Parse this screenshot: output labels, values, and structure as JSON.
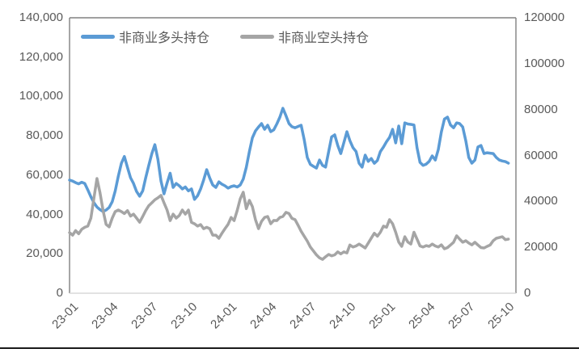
{
  "legend": [
    {
      "label": "非商业多头持仓",
      "color": "#5B9BD5"
    },
    {
      "label": "非商业空头持仓",
      "color": "#A5A5A5"
    }
  ],
  "left_axis_tick_labels": [
    "140,000",
    "120,000",
    "100,000",
    "80,000",
    "60,000",
    "40,000",
    "20,000",
    "0"
  ],
  "right_axis_tick_labels": [
    "120000",
    "100000",
    "80000",
    "60000",
    "40000",
    "20000",
    "0"
  ],
  "x_axis_tick_labels": [
    "23-01",
    "23-04",
    "23-07",
    "23-10",
    "24-01",
    "24-04",
    "24-07",
    "24-10",
    "25-01",
    "25-04",
    "25-07",
    "25-10"
  ],
  "chart_data": {
    "type": "line",
    "title": "",
    "xlabel": "",
    "ylabel": "",
    "frequency": "weekly",
    "grid": false,
    "legend_position": "top-inside",
    "left_axis": {
      "min": 0,
      "max": 140000,
      "tick_step": 20000,
      "number_format": "#,##0"
    },
    "right_axis": {
      "min": 0,
      "max": 120000,
      "tick_step": 20000,
      "number_format": "0"
    },
    "x_tick_labels": [
      "23-01",
      "23-04",
      "23-07",
      "23-10",
      "24-01",
      "24-04",
      "24-07",
      "24-10",
      "25-01",
      "25-04",
      "25-07",
      "25-10"
    ],
    "x_tick_indices": [
      0,
      13,
      26,
      39,
      52,
      65,
      78,
      91,
      104,
      117,
      130,
      143
    ],
    "series": [
      {
        "name": "非商业多头持仓",
        "color": "#5B9BD5",
        "axis": "left",
        "values": [
          57500,
          57000,
          56200,
          55600,
          56400,
          55800,
          52500,
          49000,
          46000,
          43800,
          42500,
          41500,
          42300,
          43600,
          46500,
          52000,
          59500,
          66000,
          69500,
          64000,
          58700,
          55800,
          51700,
          49300,
          52000,
          58700,
          65000,
          71000,
          75500,
          68000,
          57000,
          50500,
          56000,
          61000,
          53800,
          55800,
          54600,
          53000,
          54000,
          52000,
          53000,
          47700,
          49500,
          53000,
          57500,
          62800,
          58500,
          55000,
          53800,
          56600,
          55400,
          54600,
          53400,
          54200,
          54600,
          54000,
          55000,
          58000,
          64000,
          72000,
          79000,
          82500,
          84500,
          86200,
          83300,
          85400,
          82100,
          83000,
          86000,
          89500,
          94000,
          90300,
          86200,
          84600,
          84100,
          84800,
          85400,
          78000,
          69000,
          65500,
          64500,
          63600,
          67700,
          65000,
          64100,
          71900,
          79500,
          80500,
          75100,
          71000,
          76500,
          82100,
          77500,
          74000,
          72000,
          66000,
          64100,
          70200,
          67000,
          68500,
          66000,
          67500,
          72000,
          74300,
          77000,
          79200,
          83300,
          76400,
          85000,
          76000,
          86600,
          86000,
          85800,
          85500,
          74000,
          66500,
          65000,
          65600,
          67000,
          69800,
          67700,
          73000,
          82000,
          88500,
          89500,
          85500,
          84100,
          86600,
          86200,
          84500,
          77500,
          69000,
          66100,
          67700,
          74300,
          75100,
          71000,
          71400,
          71200,
          71000,
          69000,
          67700,
          67200,
          66900,
          66100
        ]
      },
      {
        "name": "非商业空头持仓",
        "color": "#A5A5A5",
        "axis": "left",
        "values": [
          30800,
          29500,
          31800,
          30200,
          32500,
          33500,
          34100,
          38200,
          48500,
          58300,
          51000,
          42000,
          35000,
          33700,
          38200,
          41500,
          42300,
          41500,
          40500,
          42000,
          39200,
          40200,
          38200,
          36100,
          39000,
          42000,
          44500,
          46000,
          47500,
          48500,
          49700,
          46000,
          42300,
          36900,
          40200,
          38200,
          39500,
          42300,
          40200,
          42300,
          36000,
          35300,
          34100,
          34900,
          32800,
          33500,
          32800,
          29500,
          29500,
          27900,
          30500,
          32800,
          35000,
          38500,
          36900,
          42000,
          48000,
          51300,
          43000,
          47200,
          44000,
          37400,
          32800,
          36500,
          38500,
          39000,
          35300,
          37000,
          36900,
          38500,
          39000,
          41100,
          40500,
          38000,
          37400,
          34500,
          31500,
          29000,
          26500,
          23500,
          21500,
          19500,
          18000,
          17200,
          18500,
          19700,
          19000,
          19500,
          21000,
          20000,
          21000,
          20500,
          24500,
          23500,
          24000,
          25000,
          24000,
          23000,
          25500,
          28000,
          30500,
          29000,
          31000,
          34100,
          33500,
          37400,
          35300,
          31000,
          26000,
          23800,
          28700,
          26000,
          25000,
          31000,
          27500,
          24000,
          23500,
          24200,
          23800,
          25000,
          24000,
          23500,
          24600,
          22600,
          23200,
          24500,
          25900,
          29200,
          27500,
          25900,
          26700,
          25500,
          24600,
          25900,
          24500,
          23200,
          23000,
          23800,
          24500,
          26700,
          27900,
          28300,
          28700,
          27200,
          27500
        ]
      }
    ]
  },
  "frame_colors": {
    "border": "#808080",
    "baseline": "#D9D9D9"
  }
}
